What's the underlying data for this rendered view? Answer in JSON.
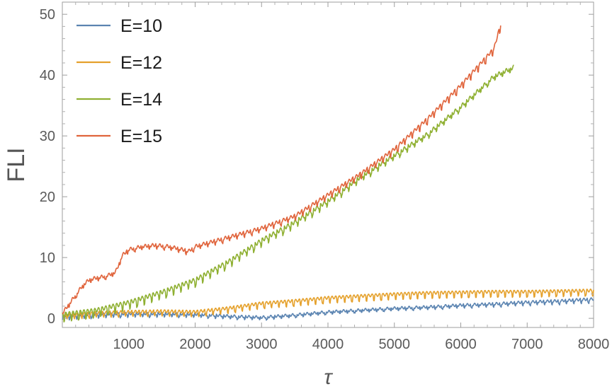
{
  "chart_data": {
    "type": "line",
    "title": "",
    "xlabel": "τ",
    "ylabel": "FLI",
    "xlim": [
      0,
      8000
    ],
    "ylim": [
      -1.5,
      52
    ],
    "x_ticks": [
      1000,
      2000,
      3000,
      4000,
      5000,
      6000,
      7000,
      8000
    ],
    "y_ticks": [
      0,
      10,
      20,
      30,
      40,
      50
    ],
    "x_tick_labels": [
      "1000",
      "2000",
      "3000",
      "4000",
      "5000",
      "6000",
      "7000",
      "8000"
    ],
    "y_tick_labels": [
      "0",
      "10",
      "20",
      "30",
      "40",
      "50"
    ],
    "legend_position": "top-left",
    "grid": false,
    "series": [
      {
        "name": "E=10",
        "color": "#5b84b1",
        "x": [
          0,
          500,
          1000,
          1500,
          2000,
          2500,
          3000,
          3500,
          4000,
          4500,
          5000,
          5500,
          6000,
          6500,
          7000,
          7500,
          8000
        ],
        "y": [
          0.5,
          0.8,
          0.9,
          0.9,
          0.8,
          0.5,
          0.3,
          0.7,
          1.2,
          1.5,
          1.8,
          2.0,
          2.3,
          2.5,
          2.8,
          3.0,
          3.3
        ],
        "oscillation": 0.7
      },
      {
        "name": "E=12",
        "color": "#e5a12c",
        "x": [
          0,
          500,
          1000,
          1500,
          2000,
          2500,
          3000,
          3500,
          4000,
          4500,
          5000,
          5500,
          6000,
          6500,
          7000,
          7500,
          8000
        ],
        "y": [
          0.6,
          1.0,
          1.2,
          1.3,
          1.2,
          1.8,
          2.6,
          3.0,
          3.5,
          3.8,
          4.1,
          4.3,
          4.4,
          4.5,
          4.5,
          4.6,
          4.7
        ],
        "oscillation": 0.8
      },
      {
        "name": "E=14",
        "color": "#8fb032",
        "x": [
          0,
          500,
          1000,
          1500,
          2000,
          2500,
          3000,
          3500,
          4000,
          4500,
          5000,
          5500,
          6000,
          6500,
          6800
        ],
        "y": [
          0.8,
          1.5,
          2.8,
          4.5,
          6.5,
          9.5,
          13.0,
          16.0,
          19.5,
          23.5,
          27.0,
          30.5,
          35.0,
          40.0,
          41.5
        ],
        "oscillation": 1.1
      },
      {
        "name": "E=15",
        "color": "#e0643c",
        "x": [
          0,
          100,
          200,
          300,
          400,
          500,
          600,
          700,
          800,
          850,
          900,
          1000,
          1200,
          1400,
          1600,
          1800,
          1900,
          2000,
          2500,
          3000,
          3500,
          4000,
          4500,
          5000,
          5500,
          6000,
          6500,
          6600
        ],
        "y": [
          1.0,
          2.5,
          4.0,
          5.5,
          6.5,
          6.8,
          7.0,
          7.3,
          7.8,
          9.0,
          10.5,
          11.5,
          12.0,
          12.2,
          12.0,
          11.5,
          11.2,
          12.0,
          13.5,
          15.0,
          17.0,
          20.5,
          24.0,
          28.0,
          33.0,
          38.5,
          44.5,
          48.5
        ],
        "oscillation": 0.9
      }
    ]
  }
}
